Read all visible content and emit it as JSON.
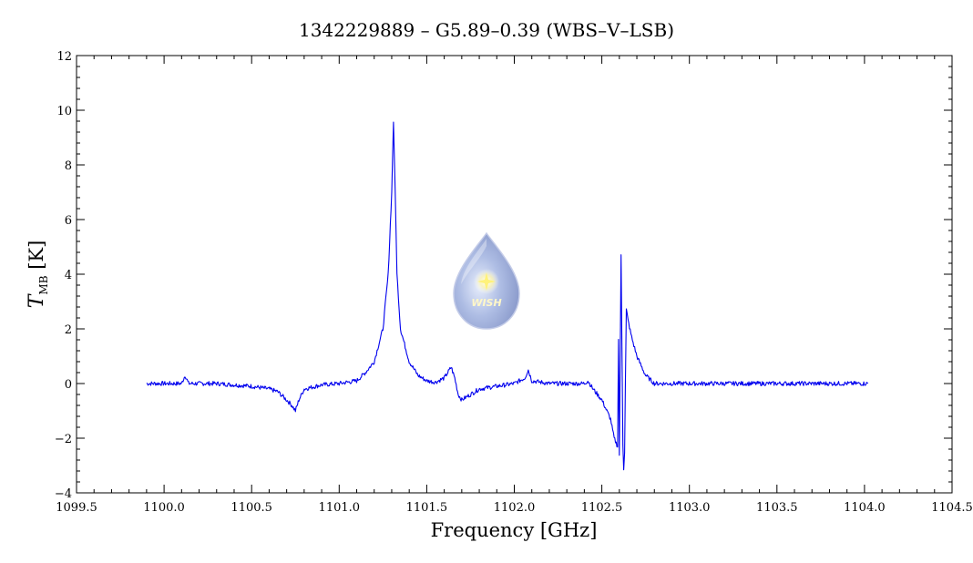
{
  "chart_data": {
    "type": "line",
    "title": "1342229889 – G5.89–0.39 (WBS–V–LSB)",
    "xlabel": "Frequency [GHz]",
    "ylabel_symbol": "T",
    "ylabel_subscript": "MB",
    "ylabel_unit": "[K]",
    "xlim": [
      1099.5,
      1104.5
    ],
    "ylim": [
      -4,
      12
    ],
    "xticks": [
      1099.5,
      1100.0,
      1100.5,
      1101.0,
      1101.5,
      1102.0,
      1102.5,
      1103.0,
      1103.5,
      1104.0,
      1104.5
    ],
    "xtick_labels": [
      "1099.5",
      "1100.0",
      "1100.5",
      "1101.0",
      "1101.5",
      "1102.0",
      "1102.5",
      "1103.0",
      "1103.5",
      "1104.0",
      "1104.5"
    ],
    "yticks": [
      -4,
      -2,
      0,
      2,
      4,
      6,
      8,
      10,
      12
    ],
    "ytick_labels": [
      "−4",
      "−2",
      "0",
      "2",
      "4",
      "6",
      "8",
      "10",
      "12"
    ],
    "grid": false,
    "line_color": "#0000ee",
    "logo_text": "WISH",
    "series": [
      {
        "x": [
          1099.9,
          1100.1,
          1100.12,
          1100.14,
          1100.3,
          1100.5,
          1100.6,
          1100.65,
          1100.7,
          1100.73,
          1100.75,
          1100.77,
          1100.8,
          1100.9,
          1101.0,
          1101.1,
          1101.15,
          1101.2,
          1101.25,
          1101.28,
          1101.3,
          1101.31,
          1101.32,
          1101.33,
          1101.35,
          1101.4,
          1101.45,
          1101.5,
          1101.55,
          1101.6,
          1101.64,
          1101.66,
          1101.68,
          1101.7,
          1101.75,
          1101.8,
          1101.9,
          1102.0,
          1102.06,
          1102.08,
          1102.1,
          1102.2,
          1102.3,
          1102.4,
          1102.42,
          1102.45,
          1102.5,
          1102.55,
          1102.57,
          1102.59,
          1102.595,
          1102.6,
          1102.61,
          1102.62,
          1102.625,
          1102.63,
          1102.64,
          1102.65,
          1102.67,
          1102.7,
          1102.75,
          1102.8,
          1102.9,
          1103.0,
          1103.5,
          1104.02
        ],
        "y": [
          0.0,
          0.0,
          0.3,
          0.0,
          0.0,
          -0.1,
          -0.2,
          -0.3,
          -0.6,
          -0.8,
          -1.0,
          -0.6,
          -0.2,
          -0.05,
          0.0,
          0.1,
          0.4,
          0.8,
          2.0,
          4.0,
          7.0,
          9.6,
          7.0,
          4.0,
          2.0,
          0.8,
          0.3,
          0.1,
          0.05,
          0.2,
          0.6,
          0.2,
          -0.4,
          -0.6,
          -0.4,
          -0.2,
          -0.1,
          0.0,
          0.2,
          0.5,
          0.1,
          0.0,
          0.0,
          0.0,
          0.1,
          -0.2,
          -0.6,
          -1.3,
          -2.0,
          -2.3,
          1.6,
          -2.6,
          4.7,
          -2.2,
          -3.1,
          -2.5,
          2.7,
          2.3,
          1.7,
          1.0,
          0.3,
          0.0,
          0.0,
          0.0,
          0.0,
          0.0
        ]
      }
    ]
  }
}
